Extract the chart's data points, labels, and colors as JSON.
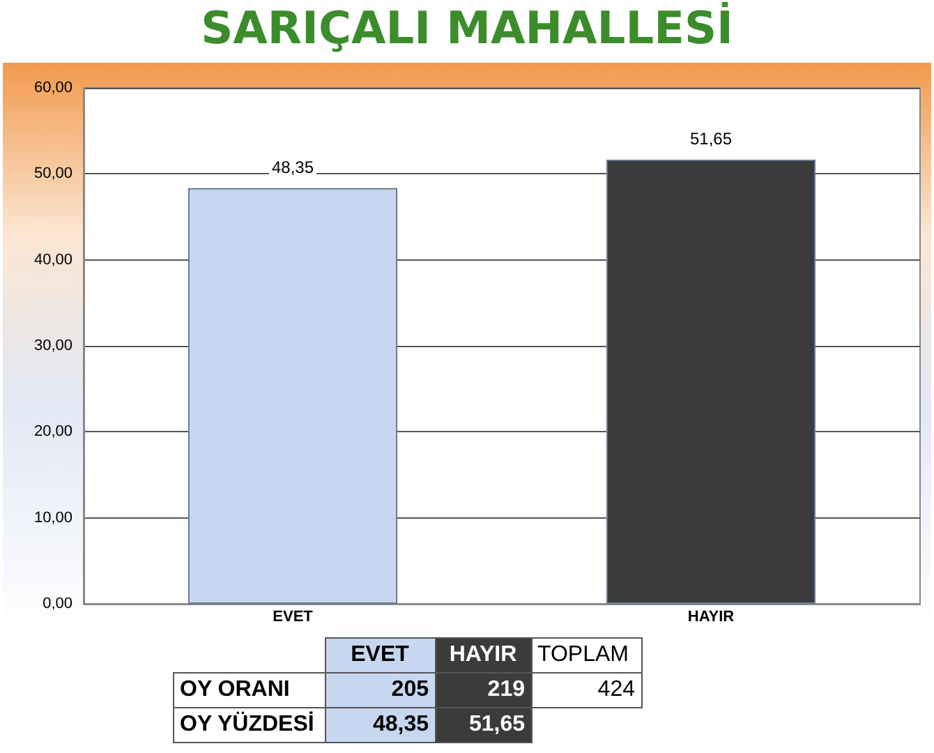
{
  "chart_data": {
    "type": "bar",
    "title": "SARIÇALI MAHALLESİ",
    "categories": [
      "EVET",
      "HAYIR"
    ],
    "values": [
      48.35,
      51.65
    ],
    "colors": [
      "#c6d7ef",
      "#3b3b3b"
    ],
    "value_labels": [
      "48,35",
      "51,65"
    ],
    "ylim": [
      0,
      60
    ],
    "yticks": [
      {
        "value": 0,
        "label": "0,00"
      },
      {
        "value": 10,
        "label": "10,00"
      },
      {
        "value": 20,
        "label": "20,00"
      },
      {
        "value": 30,
        "label": "30,00"
      },
      {
        "value": 40,
        "label": "40,00"
      },
      {
        "value": 50,
        "label": "50,00"
      },
      {
        "value": 60,
        "label": "60,00"
      }
    ],
    "grid": "y",
    "annotations": [
      "TOPLAM",
      "OY ORANI",
      "205",
      "219",
      "424",
      "OY YÜZDESİ"
    ]
  }
}
